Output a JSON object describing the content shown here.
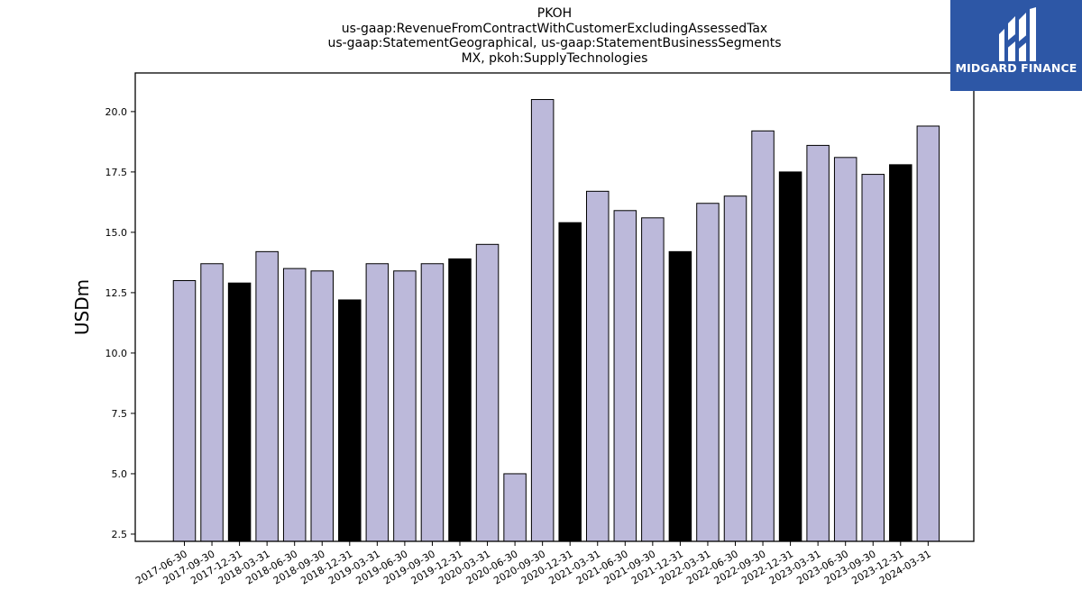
{
  "title_lines": [
    "PKOH",
    "us-gaap:RevenueFromContractWithCustomerExcludingAssessedTax",
    "us-gaap:StatementGeographical, us-gaap:StatementBusinessSegments",
    "MX, pkoh:SupplyTechnologies"
  ],
  "logo": {
    "text": "MIDGARD FINANCE",
    "color": "#2d57a6"
  },
  "colors": {
    "regular_bar": "#bcb9da",
    "year_end_bar": "#000000",
    "edge": "#000000"
  },
  "chart_data": {
    "type": "bar",
    "ylabel": "USDm",
    "xlabel": "",
    "ylim": [
      2.2,
      21.6
    ],
    "yticks": [
      2.5,
      5.0,
      7.5,
      10.0,
      12.5,
      15.0,
      17.5,
      20.0
    ],
    "ytick_labels": [
      "2.5",
      "5.0",
      "7.5",
      "10.0",
      "12.5",
      "15.0",
      "17.5",
      "20.0"
    ],
    "grid": false,
    "categories": [
      "2017-06-30",
      "2017-09-30",
      "2017-12-31",
      "2018-03-31",
      "2018-06-30",
      "2018-09-30",
      "2018-12-31",
      "2019-03-31",
      "2019-06-30",
      "2019-09-30",
      "2019-12-31",
      "2020-03-31",
      "2020-06-30",
      "2020-09-30",
      "2020-12-31",
      "2021-03-31",
      "2021-06-30",
      "2021-09-30",
      "2021-12-31",
      "2022-03-31",
      "2022-06-30",
      "2022-09-30",
      "2022-12-31",
      "2023-03-31",
      "2023-06-30",
      "2023-09-30",
      "2023-12-31",
      "2024-03-31"
    ],
    "values": [
      13.0,
      13.7,
      12.9,
      14.2,
      13.5,
      13.4,
      12.2,
      13.7,
      13.4,
      13.7,
      13.9,
      14.5,
      5.0,
      20.5,
      15.4,
      16.7,
      15.9,
      15.6,
      14.2,
      16.2,
      16.5,
      19.2,
      17.5,
      18.6,
      18.1,
      17.4,
      17.8,
      19.4
    ]
  }
}
